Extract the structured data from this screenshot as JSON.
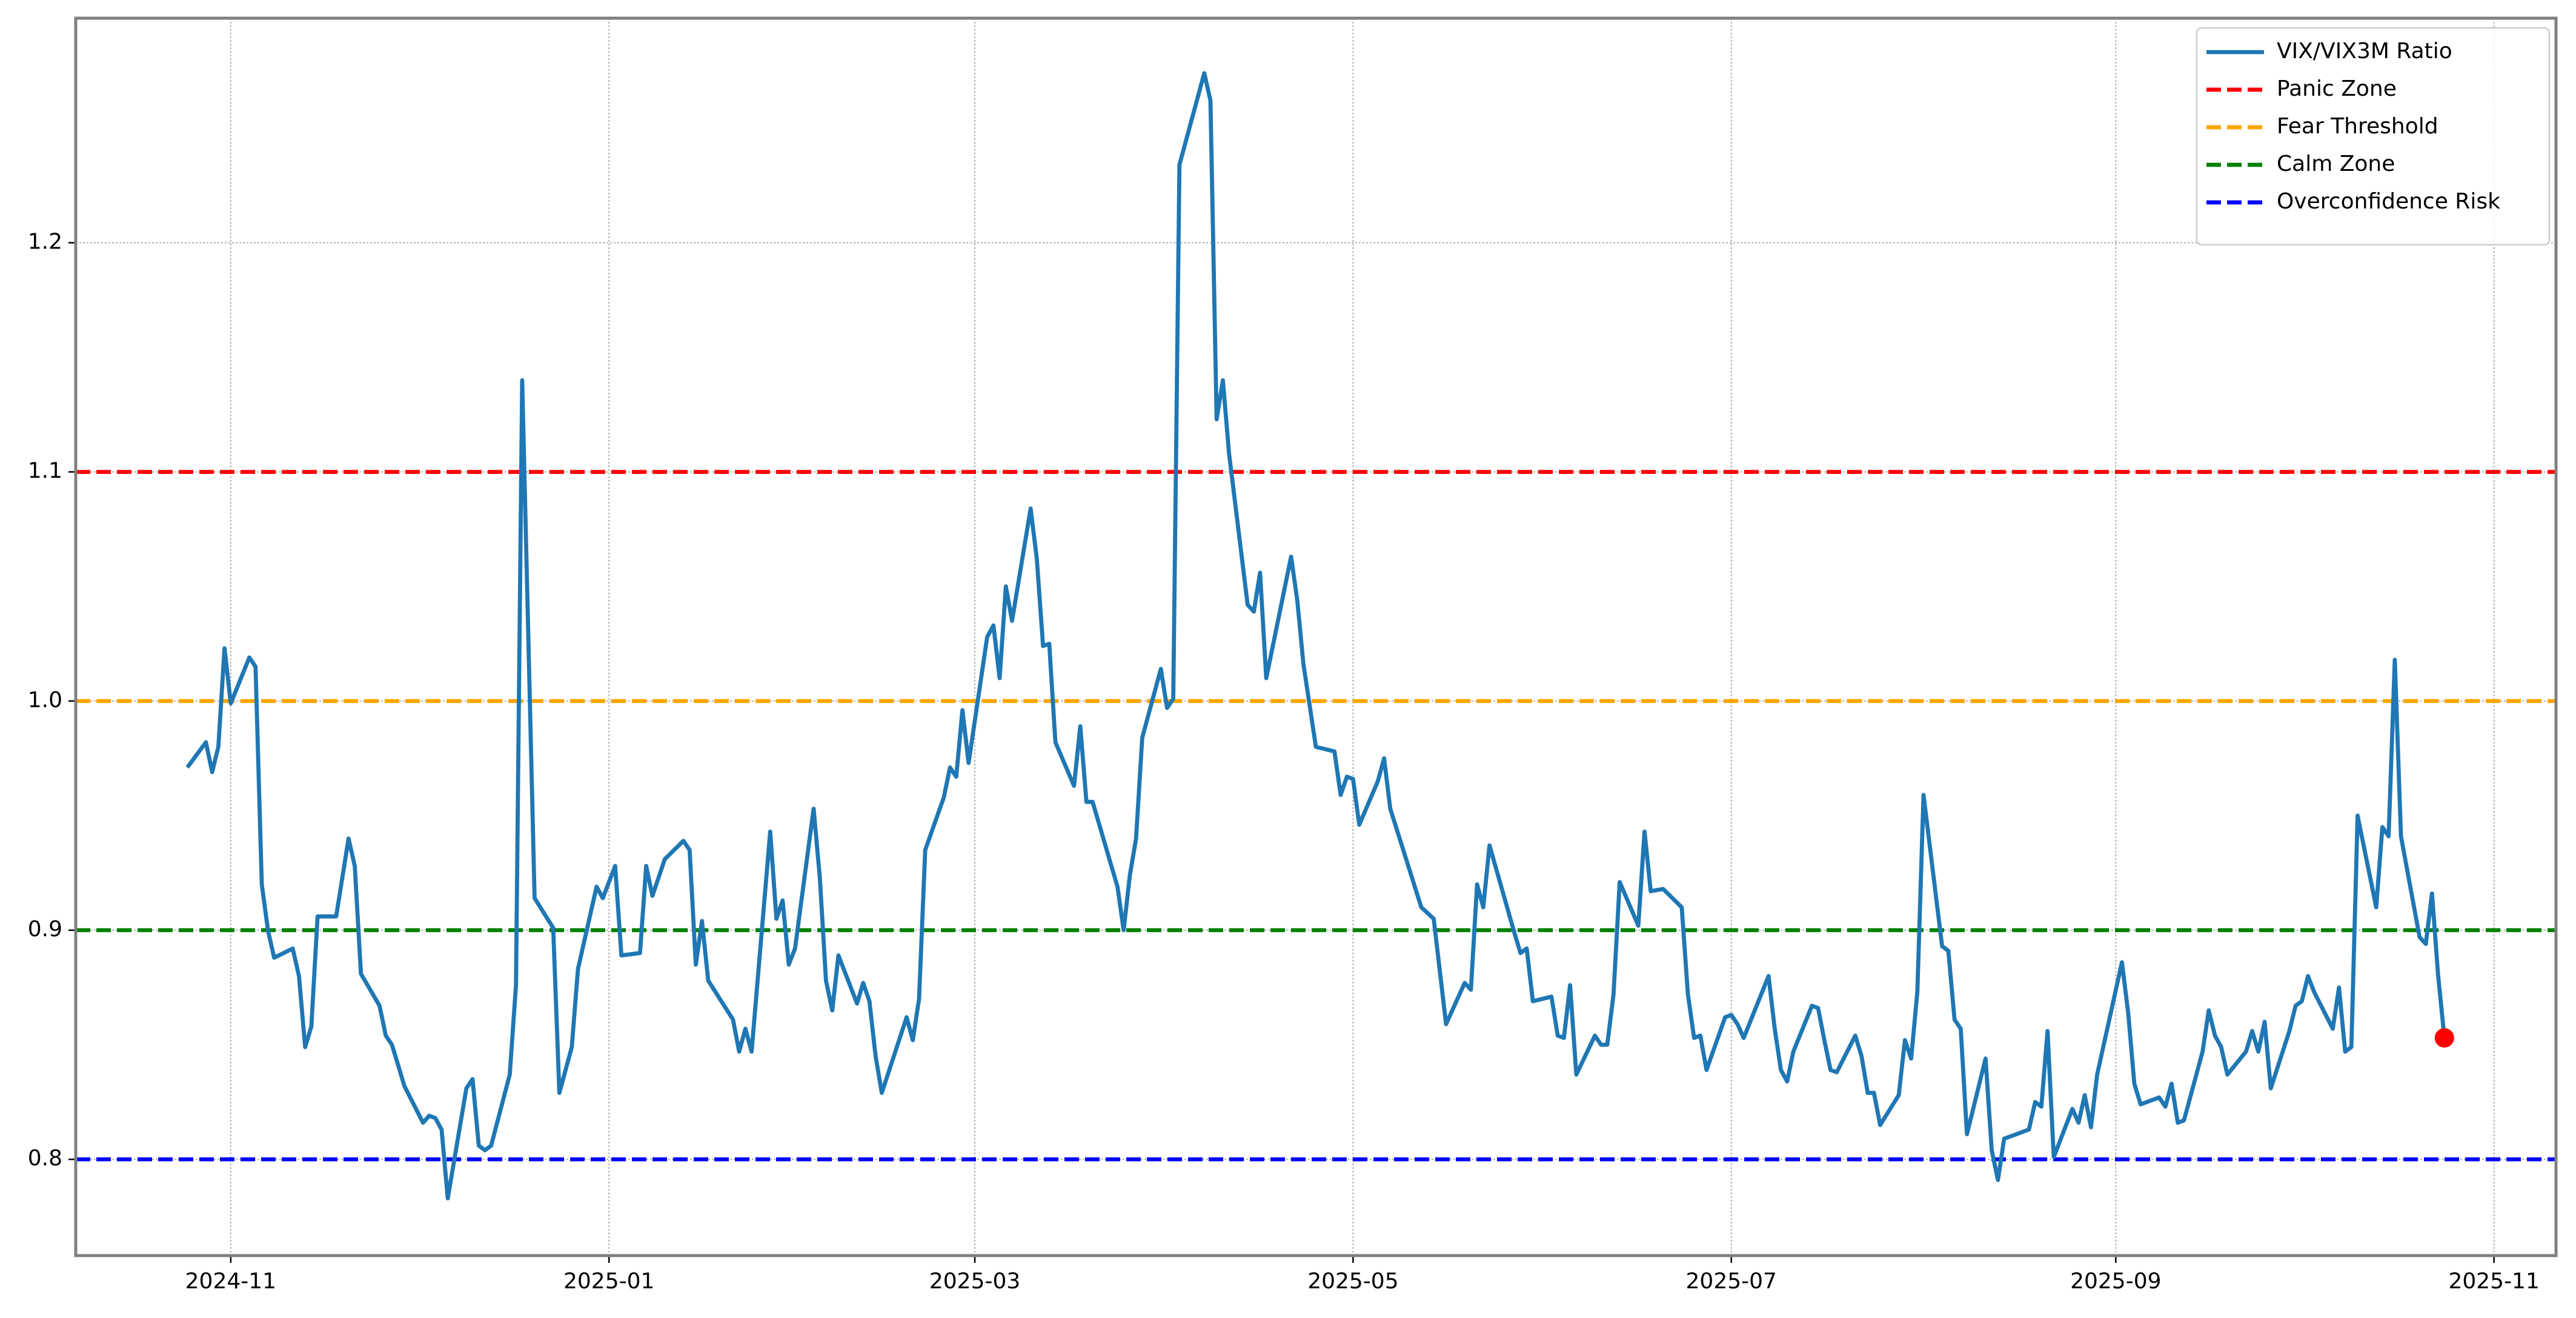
{
  "chart_data": {
    "type": "line",
    "series": [
      {
        "name": "VIX/VIX3M Ratio",
        "color": "#1f77b4",
        "x": [
          "2024-10-25",
          "2024-10-28",
          "2024-10-29",
          "2024-10-30",
          "2024-10-31",
          "2024-11-01",
          "2024-11-04",
          "2024-11-05",
          "2024-11-06",
          "2024-11-07",
          "2024-11-08",
          "2024-11-11",
          "2024-11-12",
          "2024-11-13",
          "2024-11-14",
          "2024-11-15",
          "2024-11-18",
          "2024-11-19",
          "2024-11-20",
          "2024-11-21",
          "2024-11-22",
          "2024-11-25",
          "2024-11-26",
          "2024-11-27",
          "2024-11-29",
          "2024-12-02",
          "2024-12-03",
          "2024-12-04",
          "2024-12-05",
          "2024-12-06",
          "2024-12-09",
          "2024-12-10",
          "2024-12-11",
          "2024-12-12",
          "2024-12-13",
          "2024-12-16",
          "2024-12-17",
          "2024-12-18",
          "2024-12-20",
          "2024-12-23",
          "2024-12-24",
          "2024-12-26",
          "2024-12-27",
          "2024-12-30",
          "2024-12-31",
          "2025-01-02",
          "2025-01-03",
          "2025-01-06",
          "2025-01-07",
          "2025-01-08",
          "2025-01-10",
          "2025-01-13",
          "2025-01-14",
          "2025-01-15",
          "2025-01-16",
          "2025-01-17",
          "2025-01-21",
          "2025-01-22",
          "2025-01-23",
          "2025-01-24",
          "2025-01-27",
          "2025-01-28",
          "2025-01-29",
          "2025-01-30",
          "2025-01-31",
          "2025-02-03",
          "2025-02-04",
          "2025-02-05",
          "2025-02-06",
          "2025-02-07",
          "2025-02-10",
          "2025-02-11",
          "2025-02-12",
          "2025-02-13",
          "2025-02-14",
          "2025-02-18",
          "2025-02-19",
          "2025-02-20",
          "2025-02-21",
          "2025-02-24",
          "2025-02-25",
          "2025-02-26",
          "2025-02-27",
          "2025-02-28",
          "2025-03-03",
          "2025-03-04",
          "2025-03-05",
          "2025-03-06",
          "2025-03-07",
          "2025-03-10",
          "2025-03-11",
          "2025-03-12",
          "2025-03-13",
          "2025-03-14",
          "2025-03-17",
          "2025-03-18",
          "2025-03-19",
          "2025-03-20",
          "2025-03-24",
          "2025-03-25",
          "2025-03-26",
          "2025-03-27",
          "2025-03-28",
          "2025-03-31",
          "2025-04-01",
          "2025-04-02",
          "2025-04-03",
          "2025-04-07",
          "2025-04-08",
          "2025-04-09",
          "2025-04-10",
          "2025-04-11",
          "2025-04-14",
          "2025-04-15",
          "2025-04-16",
          "2025-04-17",
          "2025-04-21",
          "2025-04-22",
          "2025-04-23",
          "2025-04-24",
          "2025-04-25",
          "2025-04-28",
          "2025-04-29",
          "2025-04-30",
          "2025-05-01",
          "2025-05-02",
          "2025-05-05",
          "2025-05-06",
          "2025-05-07",
          "2025-05-12",
          "2025-05-14",
          "2025-05-16",
          "2025-05-19",
          "2025-05-20",
          "2025-05-21",
          "2025-05-22",
          "2025-05-23",
          "2025-05-27",
          "2025-05-28",
          "2025-05-29",
          "2025-05-30",
          "2025-06-02",
          "2025-06-03",
          "2025-06-04",
          "2025-06-05",
          "2025-06-06",
          "2025-06-09",
          "2025-06-10",
          "2025-06-11",
          "2025-06-12",
          "2025-06-13",
          "2025-06-16",
          "2025-06-17",
          "2025-06-18",
          "2025-06-20",
          "2025-06-23",
          "2025-06-24",
          "2025-06-25",
          "2025-06-26",
          "2025-06-27",
          "2025-06-30",
          "2025-07-01",
          "2025-07-02",
          "2025-07-03",
          "2025-07-07",
          "2025-07-08",
          "2025-07-09",
          "2025-07-10",
          "2025-07-11",
          "2025-07-14",
          "2025-07-15",
          "2025-07-16",
          "2025-07-17",
          "2025-07-18",
          "2025-07-21",
          "2025-07-22",
          "2025-07-23",
          "2025-07-24",
          "2025-07-25",
          "2025-07-28",
          "2025-07-29",
          "2025-07-30",
          "2025-07-31",
          "2025-08-01",
          "2025-08-04",
          "2025-08-05",
          "2025-08-06",
          "2025-08-07",
          "2025-08-08",
          "2025-08-11",
          "2025-08-12",
          "2025-08-13",
          "2025-08-14",
          "2025-08-15",
          "2025-08-18",
          "2025-08-19",
          "2025-08-20",
          "2025-08-21",
          "2025-08-22",
          "2025-08-25",
          "2025-08-26",
          "2025-08-27",
          "2025-08-28",
          "2025-08-29",
          "2025-09-02",
          "2025-09-03",
          "2025-09-04",
          "2025-09-05",
          "2025-09-08",
          "2025-09-09",
          "2025-09-10",
          "2025-09-11",
          "2025-09-12",
          "2025-09-15",
          "2025-09-16",
          "2025-09-17",
          "2025-09-18",
          "2025-09-19",
          "2025-09-22",
          "2025-09-23",
          "2025-09-24",
          "2025-09-25",
          "2025-09-26",
          "2025-09-29",
          "2025-09-30",
          "2025-10-01",
          "2025-10-02",
          "2025-10-03",
          "2025-10-06",
          "2025-10-07",
          "2025-10-08",
          "2025-10-09",
          "2025-10-10",
          "2025-10-13",
          "2025-10-14",
          "2025-10-15",
          "2025-10-16",
          "2025-10-17",
          "2025-10-20",
          "2025-10-21",
          "2025-10-22",
          "2025-10-23",
          "2025-10-24"
        ],
        "values": [
          0.971,
          0.982,
          0.969,
          0.98,
          1.023,
          0.999,
          1.019,
          1.015,
          0.92,
          0.9,
          0.888,
          0.892,
          0.88,
          0.849,
          0.858,
          0.906,
          0.906,
          0.923,
          0.94,
          0.928,
          0.881,
          0.867,
          0.854,
          0.85,
          0.832,
          0.816,
          0.819,
          0.818,
          0.813,
          0.783,
          0.831,
          0.835,
          0.806,
          0.804,
          0.806,
          0.837,
          0.876,
          1.14,
          0.914,
          0.901,
          0.829,
          0.849,
          0.883,
          0.919,
          0.914,
          0.928,
          0.889,
          0.89,
          0.928,
          0.915,
          0.931,
          0.939,
          0.935,
          0.885,
          0.904,
          0.878,
          0.861,
          0.847,
          0.857,
          0.847,
          0.943,
          0.905,
          0.913,
          0.885,
          0.892,
          0.953,
          0.923,
          0.878,
          0.865,
          0.889,
          0.868,
          0.877,
          0.869,
          0.845,
          0.829,
          0.862,
          0.852,
          0.87,
          0.935,
          0.958,
          0.971,
          0.967,
          0.996,
          0.973,
          1.028,
          1.033,
          1.01,
          1.05,
          1.035,
          1.084,
          1.062,
          1.024,
          1.025,
          0.982,
          0.963,
          0.989,
          0.956,
          0.956,
          0.919,
          0.9,
          0.924,
          0.94,
          0.984,
          1.014,
          0.997,
          1.001,
          1.234,
          1.274,
          1.262,
          1.123,
          1.14,
          1.108,
          1.042,
          1.039,
          1.056,
          1.01,
          1.063,
          1.044,
          1.016,
          0.998,
          0.98,
          0.978,
          0.959,
          0.967,
          0.966,
          0.946,
          0.965,
          0.975,
          0.953,
          0.91,
          0.905,
          0.859,
          0.877,
          0.874,
          0.92,
          0.91,
          0.937,
          0.899,
          0.89,
          0.892,
          0.869,
          0.871,
          0.854,
          0.853,
          0.876,
          0.837,
          0.854,
          0.85,
          0.85,
          0.872,
          0.921,
          0.902,
          0.943,
          0.917,
          0.918,
          0.91,
          0.872,
          0.853,
          0.854,
          0.839,
          0.862,
          0.863,
          0.859,
          0.853,
          0.88,
          0.857,
          0.839,
          0.834,
          0.847,
          0.867,
          0.866,
          0.852,
          0.839,
          0.838,
          0.854,
          0.845,
          0.829,
          0.829,
          0.815,
          0.828,
          0.852,
          0.844,
          0.873,
          0.959,
          0.893,
          0.891,
          0.861,
          0.857,
          0.811,
          0.844,
          0.804,
          0.791,
          0.809,
          0.81,
          0.813,
          0.825,
          0.823,
          0.856,
          0.801,
          0.822,
          0.816,
          0.828,
          0.814,
          0.837,
          0.886,
          0.864,
          0.833,
          0.824,
          0.827,
          0.823,
          0.833,
          0.816,
          0.817,
          0.847,
          0.865,
          0.854,
          0.849,
          0.837,
          0.847,
          0.856,
          0.847,
          0.86,
          0.831,
          0.856,
          0.867,
          0.869,
          0.88,
          0.873,
          0.857,
          0.875,
          0.847,
          0.849,
          0.95,
          0.91,
          0.945,
          0.941,
          1.018,
          0.941,
          0.897,
          0.894,
          0.916,
          0.88,
          0.853
        ]
      }
    ],
    "last_marker_color": "red",
    "hlines": [
      {
        "name": "Panic Zone",
        "value": 1.1,
        "color": "red"
      },
      {
        "name": "Fear Threshold",
        "value": 1,
        "color": "orange"
      },
      {
        "name": "Calm Zone",
        "value": 0.9,
        "color": "green"
      },
      {
        "name": "Overconfidence Risk",
        "value": 0.8,
        "color": "blue"
      }
    ],
    "xlim": [
      "2024-10-07",
      "2025-11-11"
    ],
    "xticks": [
      {
        "value": "2024-11-01",
        "label": "2024-11"
      },
      {
        "value": "2025-01-01",
        "label": "2025-01"
      },
      {
        "value": "2025-03-01",
        "label": "2025-03"
      },
      {
        "value": "2025-05-01",
        "label": "2025-05"
      },
      {
        "value": "2025-07-01",
        "label": "2025-07"
      },
      {
        "value": "2025-09-01",
        "label": "2025-09"
      },
      {
        "value": "2025-11-01",
        "label": "2025-11"
      }
    ],
    "ylim": [
      0.758,
      1.298
    ],
    "yticks": [
      0.8,
      0.9,
      {
        "value": 1,
        "label": "1.0"
      },
      1.1,
      1.2
    ],
    "grid": true,
    "legend": "upper right"
  }
}
